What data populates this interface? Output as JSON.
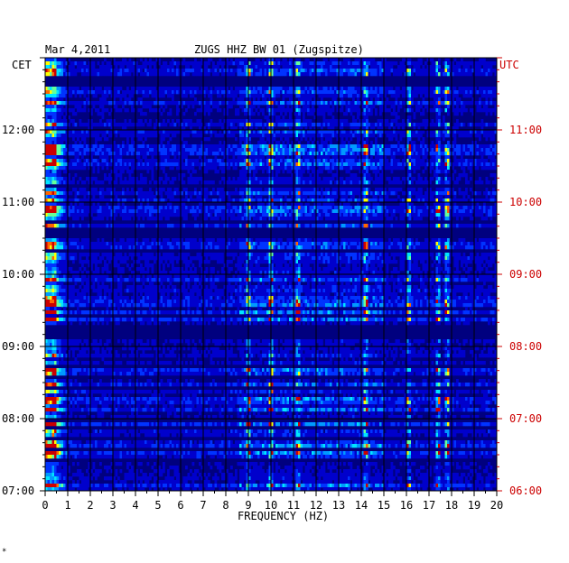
{
  "header": {
    "date": "Mar 4,2011",
    "station": "ZUGS HHZ BW 01 (Zugspitze)"
  },
  "chart_data": {
    "type": "heatmap",
    "title": "ZUGS HHZ BW 01 (Zugspitze)",
    "date": "Mar 4,2011",
    "xlabel": "FREQUENCY (HZ)",
    "xlim": [
      0,
      20
    ],
    "x_ticks": [
      "0",
      "1",
      "2",
      "3",
      "4",
      "5",
      "6",
      "7",
      "8",
      "9",
      "10",
      "11",
      "12",
      "13",
      "14",
      "15",
      "16",
      "17",
      "18",
      "19",
      "20"
    ],
    "left_axis": {
      "label": "CET",
      "ticks": [
        "12:00",
        "11:00",
        "10:00",
        "09:00",
        "08:00",
        "07:00"
      ]
    },
    "right_axis": {
      "label": "UTC",
      "ticks": [
        "11:00",
        "10:00",
        "09:00",
        "08:00",
        "07:00",
        "06:00"
      ]
    },
    "time_range_cet": [
      "07:00",
      "13:00"
    ],
    "grid": true,
    "colormap": [
      "#00007f",
      "#0000cc",
      "#0033ff",
      "#0099ff",
      "#00e5ff",
      "#66ff99",
      "#ffff00",
      "#ff6600",
      "#cc0000"
    ],
    "background_color": "#00007f",
    "strong_frequency_lines_hz": [
      0.4,
      9,
      10,
      11.2,
      14.2,
      16.1,
      17.4,
      17.8
    ],
    "footnote": "*"
  }
}
